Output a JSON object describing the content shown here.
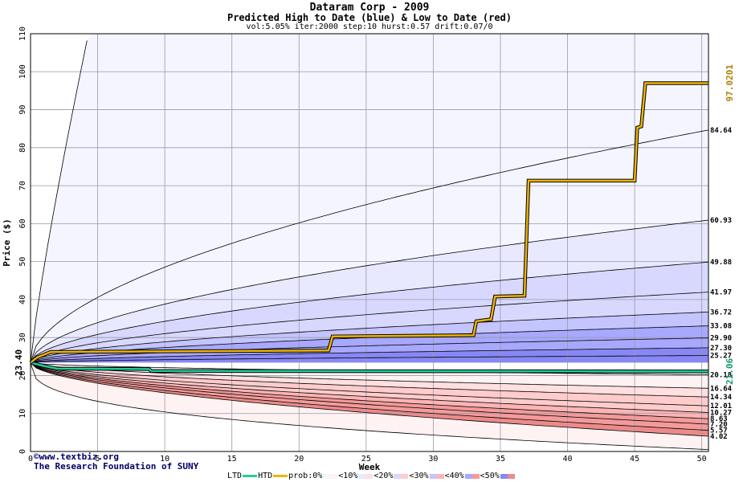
{
  "chart_data": {
    "type": "line",
    "title": "Dataram Corp - 2009",
    "subtitle": "Predicted High to Date (blue) &  Low to Date (red)",
    "params": "vol:5.05% iter:2000 step:10 hurst:0.57 drift:0.07/0",
    "xlabel": "Week",
    "ylabel": "Price ($)",
    "xlim": [
      0,
      50.5
    ],
    "ylim": [
      0,
      110
    ],
    "x_ticks": [
      "0",
      "5",
      "10",
      "15",
      "20",
      "25",
      "30",
      "35",
      "40",
      "45",
      "50"
    ],
    "y_ticks": [
      "0",
      "10",
      "20",
      "30",
      "40",
      "50",
      "60",
      "70",
      "80",
      "90",
      "100",
      "110"
    ],
    "grid": true,
    "start_price": "23.40",
    "htd_final": "97.0201",
    "ltd_final": "21.06",
    "band_colors": [
      "#f5f5ff",
      "#e8e8ff",
      "#d8d8ff",
      "#c4c4ff",
      "#a8a8ff",
      "#8888f4",
      "#fff2f2",
      "#ffe0e0",
      "#ffcccc",
      "#ffb4b4",
      "#f49a9a",
      "#ec8a8a"
    ],
    "high_end_labels": [
      "84.64",
      "60.93",
      "49.88",
      "41.97",
      "36.72",
      "33.08",
      "29.90",
      "27.30",
      "25.27"
    ],
    "low_end_labels": [
      "20.18",
      "16.64",
      "14.34",
      "12.01",
      "10.27",
      "8.63",
      "7.20",
      "5.57",
      "4.02"
    ],
    "htd": {
      "name": "HTD",
      "color": "#f0b400",
      "points": [
        [
          0,
          23.4
        ],
        [
          0.5,
          24.8
        ],
        [
          1.5,
          26.2
        ],
        [
          22.2,
          26.6
        ],
        [
          22.5,
          30.3
        ],
        [
          33.0,
          30.6
        ],
        [
          33.2,
          34.3
        ],
        [
          34.3,
          34.8
        ],
        [
          34.6,
          40.8
        ],
        [
          36.8,
          41.0
        ],
        [
          37.1,
          71.3
        ],
        [
          45.0,
          71.3
        ],
        [
          45.2,
          85.3
        ],
        [
          45.5,
          85.6
        ],
        [
          45.8,
          97.0
        ],
        [
          50.5,
          97.0
        ]
      ]
    },
    "ltd": {
      "name": "LTD",
      "color": "#22cc99",
      "points": [
        [
          0,
          23.4
        ],
        [
          1.0,
          22.5
        ],
        [
          2.0,
          21.8
        ],
        [
          8.8,
          21.7
        ],
        [
          9.0,
          21.2
        ],
        [
          50.5,
          21.06
        ]
      ]
    }
  },
  "credit": {
    "line1": "www.textbiz.org",
    "line2": "The Research Foundation of SUNY"
  },
  "legend": {
    "ltd": "LTD",
    "htd": "HTD",
    "prob": "prob:0%",
    "p10": "<10%",
    "p20": "<20%",
    "p30": "<30%",
    "p40": "<40%",
    "p50": "<50%"
  }
}
